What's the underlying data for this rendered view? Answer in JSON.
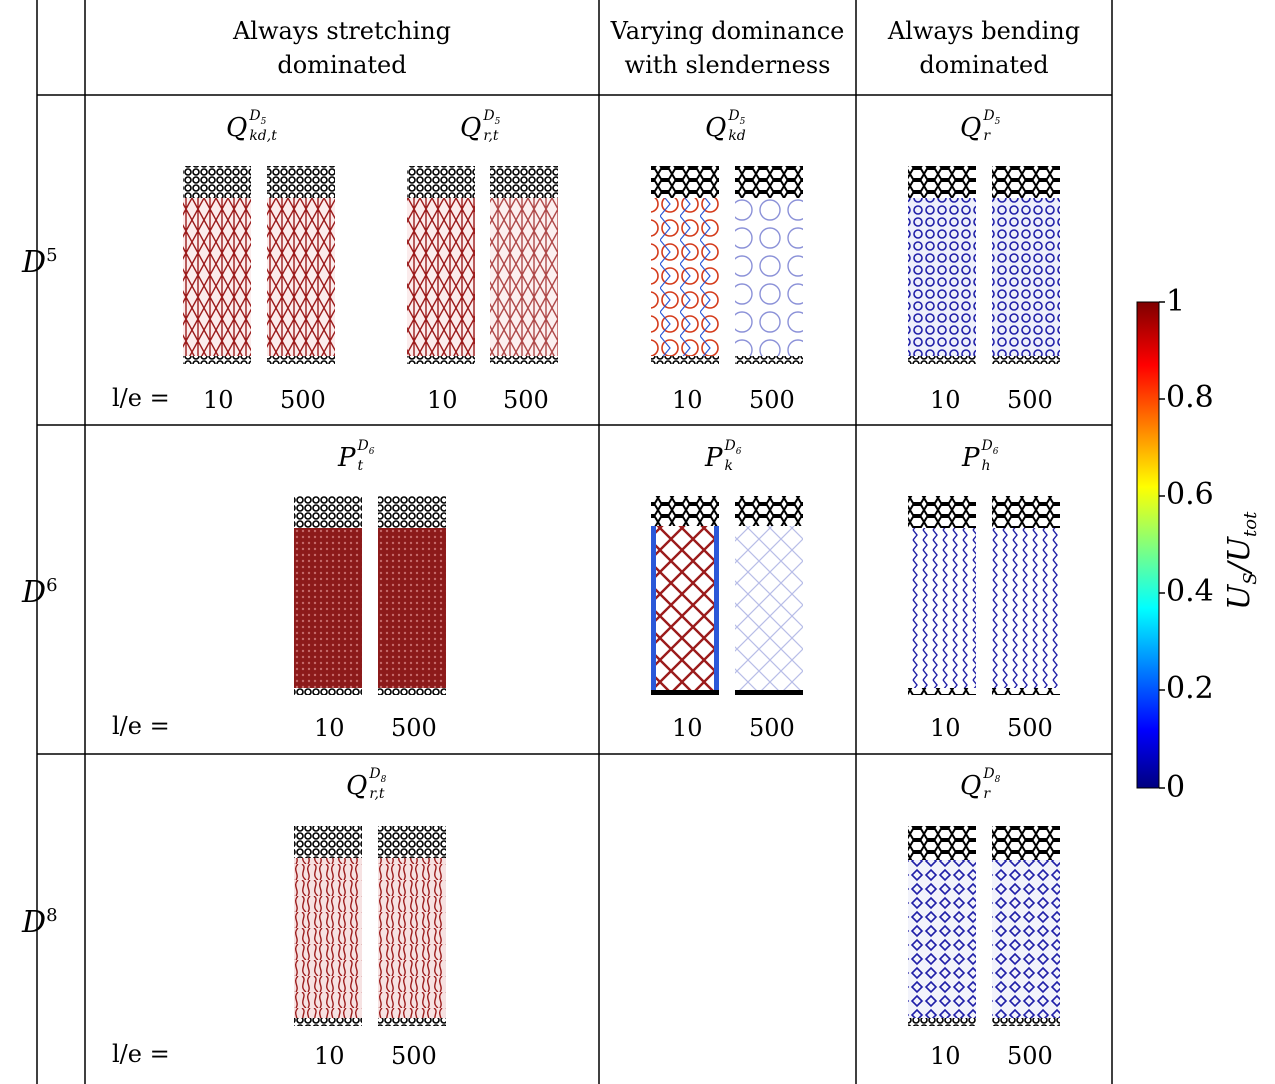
{
  "columns": [
    {
      "label_line1": "Always stretching",
      "label_line2": "dominated"
    },
    {
      "label_line1": "Varying dominance",
      "label_line2": "with slenderness"
    },
    {
      "label_line1": "Always bending",
      "label_line2": "dominated"
    }
  ],
  "rows": [
    {
      "label": "D",
      "sup": "5"
    },
    {
      "label": "D",
      "sup": "6"
    },
    {
      "label": "D",
      "sup": "8"
    }
  ],
  "le_label": "l/e =",
  "slenderness": [
    "10",
    "500"
  ],
  "cells": {
    "r1_q_kdt": {
      "base": "Q",
      "sup": "D",
      "supsub": "5",
      "sub": "kd,t"
    },
    "r1_q_rt": {
      "base": "Q",
      "sup": "D",
      "supsub": "5",
      "sub": "r,t"
    },
    "r1_q_kd": {
      "base": "Q",
      "sup": "D",
      "supsub": "5",
      "sub": "kd"
    },
    "r1_q_r": {
      "base": "Q",
      "sup": "D",
      "supsub": "5",
      "sub": "r"
    },
    "r2_p_t": {
      "base": "P",
      "sup": "D",
      "supsub": "6",
      "sub": "t"
    },
    "r2_p_k": {
      "base": "P",
      "sup": "D",
      "supsub": "6",
      "sub": "k"
    },
    "r2_p_h": {
      "base": "P",
      "sup": "D",
      "supsub": "6",
      "sub": "h"
    },
    "r3_q_rt": {
      "base": "Q",
      "sup": "D",
      "supsub": "8",
      "sub": "r,t"
    },
    "r3_q_r": {
      "base": "Q",
      "sup": "D",
      "supsub": "8",
      "sub": "r"
    }
  },
  "colorbar": {
    "ticks": [
      "1",
      "0.8",
      "0.6",
      "0.4",
      "0.2",
      "0"
    ],
    "label": "U",
    "label_sub": "S",
    "label_den": "U",
    "label_den_sub": "tot",
    "colors": [
      "#00007f",
      "#0000ff",
      "#00ffff",
      "#ffff00",
      "#ff0000",
      "#7f0000"
    ]
  },
  "colors": {
    "stretch": "#9b1b1b",
    "bend": "#1f1fa8",
    "boundary": "#000000"
  }
}
